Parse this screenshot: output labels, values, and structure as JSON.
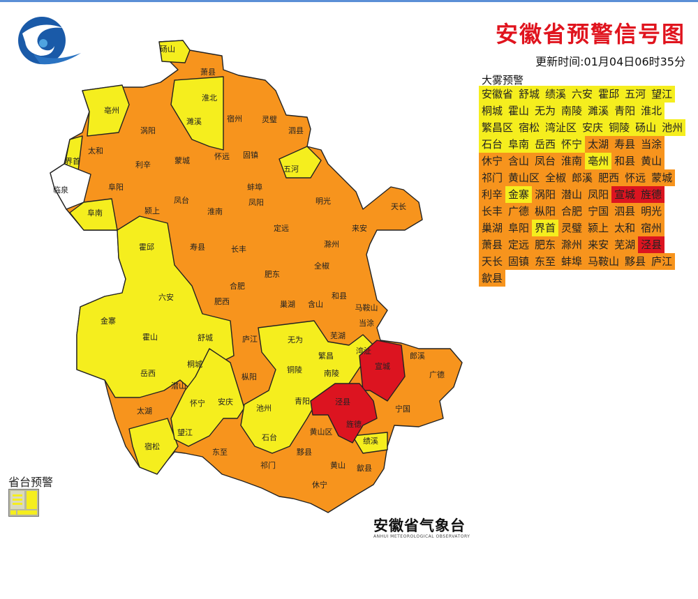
{
  "header": {
    "title": "安徽省预警信号图",
    "update_time": "更新时间:01月04日06时35分"
  },
  "legend": {
    "section_title": "大雾预警",
    "colors": {
      "yellow": "#f5ee1e",
      "orange": "#f7941d",
      "red": "#dc1420"
    },
    "rows": [
      [
        {
          "name": "安徽省",
          "level": "yellow"
        },
        {
          "name": "舒城",
          "level": "yellow"
        },
        {
          "name": "绩溪",
          "level": "yellow"
        },
        {
          "name": "六安",
          "level": "yellow"
        },
        {
          "name": "霍邱",
          "level": "yellow"
        },
        {
          "name": "五河",
          "level": "yellow"
        },
        {
          "name": "望江",
          "level": "yellow"
        }
      ],
      [
        {
          "name": "桐城",
          "level": "yellow"
        },
        {
          "name": "霍山",
          "level": "yellow"
        },
        {
          "name": "无为",
          "level": "yellow"
        },
        {
          "name": "南陵",
          "level": "yellow"
        },
        {
          "name": "濉溪",
          "level": "yellow"
        },
        {
          "name": "青阳",
          "level": "yellow"
        },
        {
          "name": "淮北",
          "level": "yellow"
        }
      ],
      [
        {
          "name": "繁昌区",
          "level": "yellow"
        },
        {
          "name": "宿松",
          "level": "yellow"
        },
        {
          "name": "湾沚区",
          "level": "yellow"
        },
        {
          "name": "安庆",
          "level": "yellow"
        },
        {
          "name": "铜陵",
          "level": "yellow"
        },
        {
          "name": "砀山",
          "level": "yellow"
        },
        {
          "name": "池州",
          "level": "yellow"
        }
      ],
      [
        {
          "name": "石台",
          "level": "yellow"
        },
        {
          "name": "阜南",
          "level": "yellow"
        },
        {
          "name": "岳西",
          "level": "yellow"
        },
        {
          "name": "怀宁",
          "level": "yellow"
        },
        {
          "name": "太湖",
          "level": "orange"
        },
        {
          "name": "寿县",
          "level": "orange"
        },
        {
          "name": "当涂",
          "level": "orange"
        }
      ],
      [
        {
          "name": "休宁",
          "level": "orange"
        },
        {
          "name": "含山",
          "level": "orange"
        },
        {
          "name": "凤台",
          "level": "orange"
        },
        {
          "name": "淮南",
          "level": "orange"
        },
        {
          "name": "亳州",
          "level": "yellow"
        },
        {
          "name": "和县",
          "level": "orange"
        },
        {
          "name": "黄山",
          "level": "orange"
        }
      ],
      [
        {
          "name": "祁门",
          "level": "orange"
        },
        {
          "name": "黄山区",
          "level": "orange"
        },
        {
          "name": "全椒",
          "level": "orange"
        },
        {
          "name": "郎溪",
          "level": "orange"
        },
        {
          "name": "肥西",
          "level": "orange"
        },
        {
          "name": "怀远",
          "level": "orange"
        },
        {
          "name": "蒙城",
          "level": "orange"
        }
      ],
      [
        {
          "name": "利辛",
          "level": "orange"
        },
        {
          "name": "金寨",
          "level": "yellow"
        },
        {
          "name": "涡阳",
          "level": "orange"
        },
        {
          "name": "潜山",
          "level": "orange"
        },
        {
          "name": "凤阳",
          "level": "orange"
        },
        {
          "name": "宣城",
          "level": "red"
        },
        {
          "name": "旌德",
          "level": "red"
        }
      ],
      [
        {
          "name": "长丰",
          "level": "orange"
        },
        {
          "name": "广德",
          "level": "orange"
        },
        {
          "name": "枞阳",
          "level": "orange"
        },
        {
          "name": "合肥",
          "level": "orange"
        },
        {
          "name": "宁国",
          "level": "orange"
        },
        {
          "name": "泗县",
          "level": "orange"
        },
        {
          "name": "明光",
          "level": "orange"
        }
      ],
      [
        {
          "name": "巢湖",
          "level": "orange"
        },
        {
          "name": "阜阳",
          "level": "orange"
        },
        {
          "name": "界首",
          "level": "yellow"
        },
        {
          "name": "灵璧",
          "level": "orange"
        },
        {
          "name": "颍上",
          "level": "orange"
        },
        {
          "name": "太和",
          "level": "orange"
        },
        {
          "name": "宿州",
          "level": "orange"
        }
      ],
      [
        {
          "name": "萧县",
          "level": "orange"
        },
        {
          "name": "定远",
          "level": "orange"
        },
        {
          "name": "肥东",
          "level": "orange"
        },
        {
          "name": "滁州",
          "level": "orange"
        },
        {
          "name": "来安",
          "level": "orange"
        },
        {
          "name": "芜湖",
          "level": "orange"
        },
        {
          "name": "泾县",
          "level": "red"
        }
      ],
      [
        {
          "name": "天长",
          "level": "orange"
        },
        {
          "name": "固镇",
          "level": "orange"
        },
        {
          "name": "东至",
          "level": "orange"
        },
        {
          "name": "蚌埠",
          "level": "orange"
        },
        {
          "name": "马鞍山",
          "level": "orange"
        },
        {
          "name": "黟县",
          "level": "orange"
        },
        {
          "name": "庐江",
          "level": "orange"
        }
      ],
      [
        {
          "name": "歙县",
          "level": "orange"
        }
      ]
    ]
  },
  "map": {
    "labels": [
      "砀山",
      "萧县",
      "淮北",
      "濉溪",
      "宿州",
      "灵璧",
      "泗县",
      "亳州",
      "涡阳",
      "太和",
      "界首",
      "利辛",
      "蒙城",
      "怀远",
      "固镇",
      "五河",
      "临泉",
      "阜阳",
      "凤台",
      "蚌埠",
      "淮南",
      "凤阳",
      "明光",
      "天长",
      "阜南",
      "颍上",
      "定远",
      "来安",
      "霍邱",
      "寿县",
      "长丰",
      "滁州",
      "肥东",
      "全椒",
      "合肥",
      "六安",
      "肥西",
      "和县",
      "马鞍山",
      "金寨",
      "巢湖",
      "含山",
      "当涂",
      "霍山",
      "舒城",
      "庐江",
      "无为",
      "芜湖",
      "湾沚",
      "繁昌",
      "郎溪",
      "岳西",
      "桐城",
      "枞阳",
      "铜陵",
      "南陵",
      "宣城",
      "广德",
      "潜山",
      "怀宁",
      "安庆",
      "池州",
      "青阳",
      "泾县",
      "宁国",
      "太湖",
      "旌德",
      "望江",
      "石台",
      "黄山区",
      "绩溪",
      "东至",
      "宿松",
      "黟县",
      "黄山",
      "歙县",
      "祁门",
      "休宁"
    ]
  },
  "footer": {
    "provincial_label": "省台预警",
    "observatory_name": "安徽省气象台",
    "observatory_name_en": "ANHUI METEOROLOGICAL OBSERVATORY"
  }
}
